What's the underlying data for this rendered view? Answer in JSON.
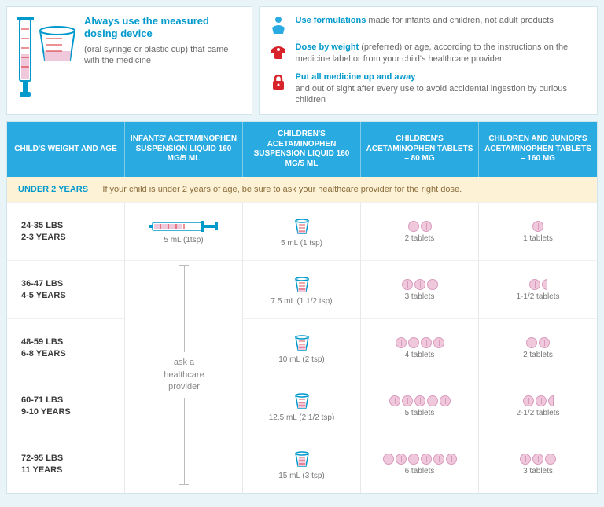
{
  "colors": {
    "accent": "#0099cc",
    "header_bg": "#29abe2",
    "page_bg": "#e8f4f8",
    "warning_bg": "#fdf1d6",
    "tablet_fill": "#f0c8dc",
    "tablet_border": "#d89bbd",
    "red_icon": "#d8232a"
  },
  "device": {
    "title": "Always use the measured dosing device",
    "subtitle": "(oral syringe or plastic cup) that came with the medicine"
  },
  "tips": [
    {
      "icon": "baby-icon",
      "title": "Use formulations",
      "rest": " made for infants and children, not adult products"
    },
    {
      "icon": "scale-icon",
      "title": "Dose by weight",
      "rest": " (preferred) or age, according to the instructions on the medicine label or from your child's healthcare provider"
    },
    {
      "icon": "lock-icon",
      "title": "Put all medicine up and away",
      "rest": "and out of sight after every use to avoid accidental ingestion by curious children"
    }
  ],
  "table": {
    "headers": [
      "CHILD'S WEIGHT AND AGE",
      "INFANTS' ACETAMINOPHEN SUSPENSION LIQUID 160 MG/5 ML",
      "CHILDREN'S ACETAMINOPHEN SUSPENSION LIQUID 160 MG/5 ML",
      "CHILDREN'S ACETAMINOPHEN TABLETS – 80 MG",
      "CHILDREN AND JUNIOR'S ACETAMINOPHEN TABLETS – 160 MG"
    ],
    "under2_label": "UNDER 2 YEARS",
    "under2_text": "If your child is under 2 years of age, be sure to ask your healthcare provider for the right dose.",
    "ask_provider": "ask a healthcare provider",
    "rows": [
      {
        "weight": "24-35 LBS",
        "age": "2-3 YEARS",
        "infants": {
          "type": "syringe",
          "label": "5 mL (1tsp)"
        },
        "childrens_liquid": {
          "type": "cup",
          "fill": 0.2,
          "label": "5 mL (1 tsp)"
        },
        "tab80": {
          "tablets": 2,
          "half": false,
          "label": "2 tablets"
        },
        "tab160": {
          "tablets": 1,
          "half": false,
          "label": "1 tablets"
        }
      },
      {
        "weight": "36-47 LBS",
        "age": "4-5 YEARS",
        "infants": {
          "type": "ask"
        },
        "childrens_liquid": {
          "type": "cup",
          "fill": 0.3,
          "label": "7.5 mL (1 1/2 tsp)"
        },
        "tab80": {
          "tablets": 3,
          "half": false,
          "label": "3 tablets"
        },
        "tab160": {
          "tablets": 1,
          "half": true,
          "label": "1-1/2 tablets"
        }
      },
      {
        "weight": "48-59 LBS",
        "age": "6-8 YEARS",
        "infants": {
          "type": "ask"
        },
        "childrens_liquid": {
          "type": "cup",
          "fill": 0.4,
          "label": "10 mL (2 tsp)"
        },
        "tab80": {
          "tablets": 4,
          "half": false,
          "label": "4 tablets"
        },
        "tab160": {
          "tablets": 2,
          "half": false,
          "label": "2 tablets"
        }
      },
      {
        "weight": "60-71 LBS",
        "age": "9-10 YEARS",
        "infants": {
          "type": "ask"
        },
        "childrens_liquid": {
          "type": "cup",
          "fill": 0.55,
          "label": "12.5 mL (2 1/2 tsp)"
        },
        "tab80": {
          "tablets": 5,
          "half": false,
          "label": "5 tablets"
        },
        "tab160": {
          "tablets": 2,
          "half": true,
          "label": "2-1/2 tablets"
        }
      },
      {
        "weight": "72-95 LBS",
        "age": "11 YEARS",
        "infants": {
          "type": "ask"
        },
        "childrens_liquid": {
          "type": "cup",
          "fill": 0.7,
          "label": "15 mL (3 tsp)"
        },
        "tab80": {
          "tablets": 6,
          "half": false,
          "label": "6 tablets"
        },
        "tab160": {
          "tablets": 3,
          "half": false,
          "label": "3 tablets"
        }
      }
    ]
  }
}
